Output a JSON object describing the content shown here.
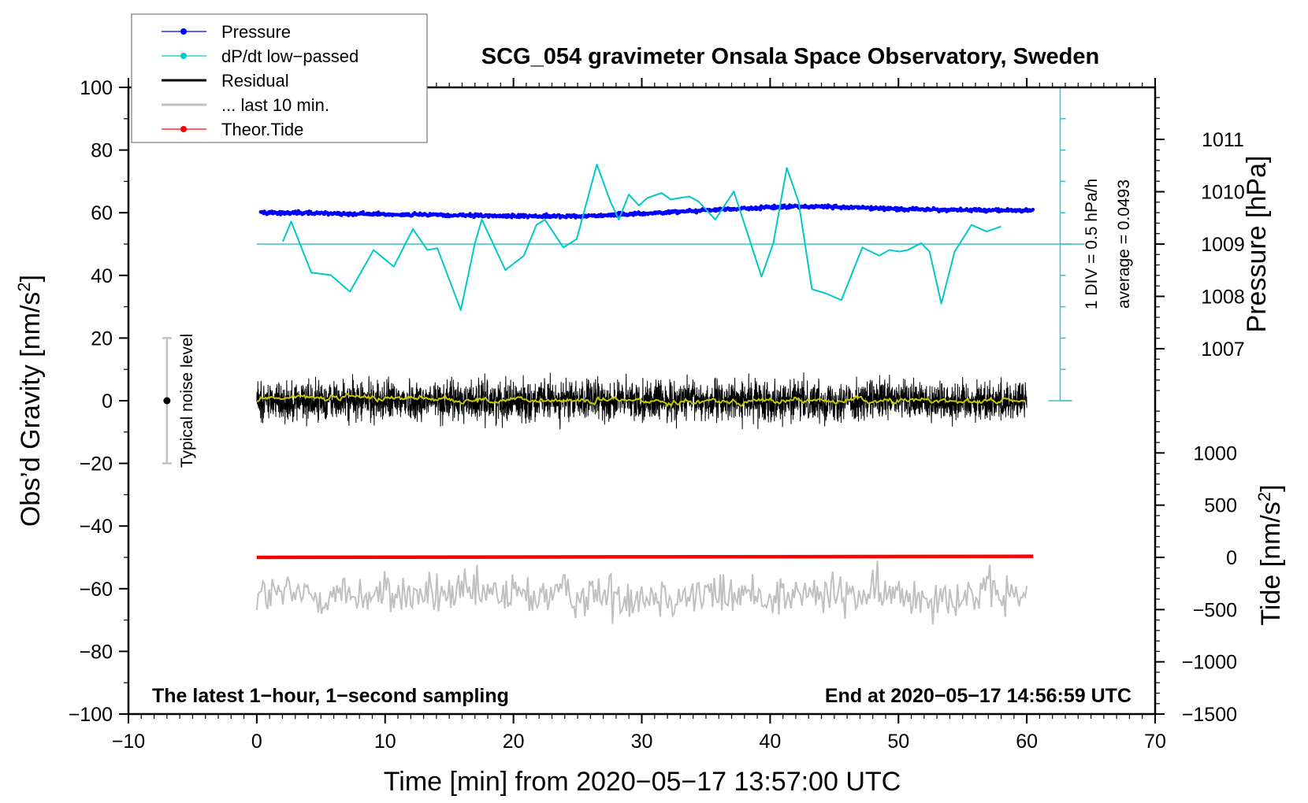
{
  "chart_data": {
    "type": "line",
    "title": "SCG_054 gravimeter Onsala Space Observatory, Sweden",
    "xlabel": "Time [min] from 2020−05−17 13:57:00 UTC",
    "ylabel_left": "Obs’d Gravity [nm/s",
    "ylabel_left_sup": "2",
    "ylabel_left_end": "]",
    "ylabel_right_pressure": "Pressure [hPa]",
    "ylabel_right_tide": "Tide [nm/s",
    "ylabel_right_tide_sup": "2",
    "ylabel_right_tide_end": "]",
    "xlim": [
      -10,
      70
    ],
    "ylim_left": [
      -100,
      100
    ],
    "x_ticks": [
      "−10",
      "0",
      "10",
      "20",
      "30",
      "40",
      "50",
      "60",
      "70"
    ],
    "y_ticks_left": [
      "100",
      "80",
      "60",
      "40",
      "20",
      "0",
      "−20",
      "−40",
      "−60",
      "−80",
      "−100"
    ],
    "pressure_ticks": [
      "1011",
      "1010",
      "1009",
      "1008",
      "1007"
    ],
    "tide_ticks": [
      "1000",
      "500",
      "0",
      "−500",
      "−1000",
      "−1500"
    ],
    "annotation_left": "The latest 1−hour, 1−second sampling",
    "annotation_right": "End at 2020−05−17 14:56:59 UTC",
    "noise_label": "Typical noise level",
    "noise_bar": {
      "x": -7,
      "low": -20,
      "high": 20,
      "center": 0
    },
    "dpdt_scale_label": "1 DIV = 0.5 hPa/h",
    "dpdt_average_label": "average = 0.0493",
    "dpdt_baseline_gravity_units": 50,
    "legend": {
      "placement": "top-left",
      "entries": [
        {
          "label": "Pressure",
          "color": "#0000ff",
          "style": "line-dot"
        },
        {
          "label": "dP/dt low−passed",
          "color": "#00c8c8",
          "style": "line-dot"
        },
        {
          "label": "Residual",
          "color": "#000000",
          "style": "line"
        },
        {
          "label": "... last 10 min.",
          "color": "#c0c0c0",
          "style": "line"
        },
        {
          "label": "Theor.Tide",
          "color": "#ff0000",
          "style": "line-dot"
        }
      ]
    },
    "series": [
      {
        "name": "Pressure",
        "unit": "hPa",
        "color": "#0000ff",
        "x": [
          0,
          5,
          10,
          17,
          25,
          30,
          35,
          42,
          45,
          50,
          55,
          60
        ],
        "y": [
          1009.6,
          1009.59,
          1009.57,
          1009.54,
          1009.53,
          1009.58,
          1009.65,
          1009.72,
          1009.71,
          1009.67,
          1009.65,
          1009.64
        ]
      },
      {
        "name": "dP/dt low-passed",
        "unit": "gravity-axis plot units",
        "color": "#00c8c8",
        "x": [
          2.03,
          2.68,
          3.6,
          4.25,
          5.76,
          7.26,
          9.1,
          10.67,
          12.17,
          13.29,
          14.07,
          15.9,
          17.0,
          17.54,
          19.37,
          20.81,
          21.79,
          22.45,
          23.89,
          24.93,
          25.72,
          26.5,
          27.55,
          28.21,
          28.99,
          29.78,
          30.43,
          31.54,
          32.26,
          32.92,
          33.7,
          34.42,
          35.73,
          36.32,
          37.17,
          38.02,
          39.33,
          40.25,
          41.3,
          42.21,
          43.26,
          44.37,
          45.55,
          47.19,
          48.5,
          49.28,
          50.07,
          50.72,
          51.77,
          52.42,
          53.34,
          54.38,
          55.69,
          56.87,
          58.0
        ],
        "y": [
          50.8,
          57.2,
          47.6,
          40.9,
          40.1,
          34.8,
          48.1,
          42.8,
          54.8,
          48.1,
          48.7,
          28.9,
          50.3,
          57.8,
          41.7,
          46.3,
          56.1,
          57.8,
          48.9,
          51.6,
          63.6,
          75.4,
          63.6,
          57.8,
          65.8,
          62.3,
          64.7,
          66.3,
          64.2,
          64.7,
          65.2,
          63.6,
          57.8,
          61.5,
          66.8,
          56.1,
          39.6,
          50.3,
          74.3,
          63.6,
          35.6,
          34.2,
          32.1,
          48.9,
          46.3,
          48.1,
          47.6,
          48.1,
          50.3,
          47.6,
          31.0,
          47.6,
          56.1,
          54.0,
          55.6
        ]
      },
      {
        "name": "Residual",
        "unit": "nm/s2",
        "color": "#000000",
        "x_range": [
          0,
          60
        ],
        "center": 0,
        "amplitude": 9,
        "smoothed_color": "#c8c800"
      },
      {
        "name": "... last 10 min.",
        "unit": "nm/s2 (offset)",
        "color": "#c0c0c0",
        "x_range": [
          0,
          60
        ],
        "center": -62,
        "amplitude": 8
      },
      {
        "name": "Theor.Tide",
        "unit": "nm/s2",
        "color": "#ff0000",
        "x": [
          0,
          60
        ],
        "y": [
          0,
          10
        ]
      }
    ]
  }
}
